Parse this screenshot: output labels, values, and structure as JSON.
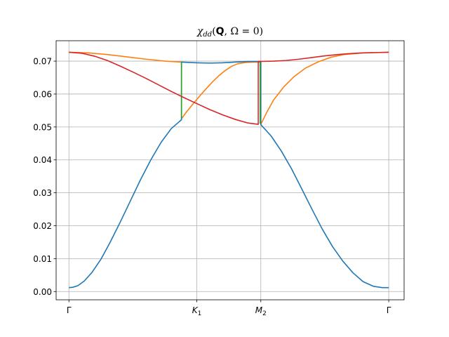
{
  "chart_data": {
    "type": "line",
    "title": "χdd(Q, Ω = 0)",
    "title_parts": {
      "chi": "χ",
      "subscript": "dd",
      "open": "(",
      "bold_q": "Q",
      "rest": ", Ω = 0)"
    },
    "xlabel": "",
    "ylabel": "",
    "x_tick_positions": [
      0.0,
      1.0,
      1.5,
      2.5
    ],
    "x_tick_labels": [
      "Γ",
      "K",
      "M",
      "Γ"
    ],
    "x_tick_subscripts": [
      "",
      "1",
      "2",
      ""
    ],
    "xlim": [
      -0.1,
      2.62
    ],
    "ylim": [
      -0.0025,
      0.0762
    ],
    "y_ticks": [
      0.0,
      0.01,
      0.02,
      0.03,
      0.04,
      0.05,
      0.06,
      0.07
    ],
    "y_tick_labels": [
      "0.00",
      "0.01",
      "0.02",
      "0.03",
      "0.04",
      "0.05",
      "0.06",
      "0.07"
    ],
    "grid": true,
    "colors": {
      "blue": "#1f77b4",
      "orange": "#ff7f0e",
      "red": "#d62728",
      "green": "#2ca02c"
    },
    "series": [
      {
        "color": "#ff7f0e",
        "points": [
          [
            0.0,
            0.0727
          ],
          [
            0.15,
            0.0725
          ],
          [
            0.3,
            0.072
          ],
          [
            0.45,
            0.0713
          ],
          [
            0.6,
            0.0706
          ],
          [
            0.75,
            0.07
          ],
          [
            0.88,
            0.0697
          ],
          [
            0.88,
            0.0525
          ],
          [
            0.92,
            0.0546
          ],
          [
            0.97,
            0.057
          ],
          [
            1.02,
            0.0593
          ],
          [
            1.07,
            0.0615
          ],
          [
            1.12,
            0.0636
          ],
          [
            1.17,
            0.0655
          ],
          [
            1.22,
            0.0671
          ],
          [
            1.27,
            0.0684
          ],
          [
            1.32,
            0.0692
          ],
          [
            1.38,
            0.0696
          ],
          [
            1.45,
            0.0697
          ],
          [
            1.5,
            0.0697
          ],
          [
            1.5,
            0.0508
          ],
          [
            1.55,
            0.0547
          ],
          [
            1.6,
            0.0582
          ],
          [
            1.68,
            0.0622
          ],
          [
            1.76,
            0.0653
          ],
          [
            1.85,
            0.0679
          ],
          [
            1.95,
            0.0698
          ],
          [
            2.05,
            0.0712
          ],
          [
            2.15,
            0.072
          ],
          [
            2.3,
            0.0725
          ],
          [
            2.4,
            0.0726
          ],
          [
            2.5,
            0.0727
          ]
        ]
      },
      {
        "color": "#1f77b4",
        "points": [
          [
            0.0,
            0.0012
          ],
          [
            0.03,
            0.0013
          ],
          [
            0.07,
            0.0018
          ],
          [
            0.12,
            0.0032
          ],
          [
            0.18,
            0.0058
          ],
          [
            0.25,
            0.0098
          ],
          [
            0.32,
            0.0148
          ],
          [
            0.4,
            0.021
          ],
          [
            0.48,
            0.0275
          ],
          [
            0.56,
            0.034
          ],
          [
            0.64,
            0.04
          ],
          [
            0.72,
            0.0453
          ],
          [
            0.8,
            0.0495
          ],
          [
            0.88,
            0.0522
          ],
          [
            0.88,
            0.0697
          ],
          [
            1.0,
            0.0695
          ],
          [
            1.1,
            0.0694
          ],
          [
            1.2,
            0.0695
          ],
          [
            1.3,
            0.0697
          ],
          [
            1.4,
            0.0699
          ],
          [
            1.5,
            0.0699
          ],
          [
            1.5,
            0.0507
          ],
          [
            1.58,
            0.0473
          ],
          [
            1.66,
            0.0427
          ],
          [
            1.74,
            0.0373
          ],
          [
            1.82,
            0.0312
          ],
          [
            1.9,
            0.025
          ],
          [
            1.98,
            0.019
          ],
          [
            2.06,
            0.0137
          ],
          [
            2.14,
            0.0093
          ],
          [
            2.22,
            0.0057
          ],
          [
            2.3,
            0.003
          ],
          [
            2.38,
            0.0016
          ],
          [
            2.45,
            0.0012
          ],
          [
            2.5,
            0.0012
          ]
        ]
      },
      {
        "color": "#2ca02c",
        "points": [
          [
            0.88,
            0.0697
          ],
          [
            0.88,
            0.0528
          ]
        ]
      },
      {
        "color": "#2ca02c",
        "points": [
          [
            1.495,
            0.0699
          ],
          [
            1.495,
            0.051
          ]
        ]
      },
      {
        "color": "#d62728",
        "points": [
          [
            0.0,
            0.0727
          ],
          [
            0.1,
            0.0724
          ],
          [
            0.2,
            0.0715
          ],
          [
            0.3,
            0.0702
          ],
          [
            0.4,
            0.0685
          ],
          [
            0.5,
            0.0667
          ],
          [
            0.6,
            0.0648
          ],
          [
            0.7,
            0.0628
          ],
          [
            0.8,
            0.0608
          ],
          [
            0.9,
            0.0589
          ],
          [
            1.0,
            0.0571
          ],
          [
            1.1,
            0.0553
          ],
          [
            1.2,
            0.0537
          ],
          [
            1.3,
            0.0523
          ],
          [
            1.4,
            0.0512
          ],
          [
            1.48,
            0.0508
          ],
          [
            1.48,
            0.0699
          ],
          [
            1.6,
            0.07
          ],
          [
            1.7,
            0.0702
          ],
          [
            1.8,
            0.0706
          ],
          [
            1.9,
            0.0711
          ],
          [
            2.0,
            0.0716
          ],
          [
            2.1,
            0.072
          ],
          [
            2.2,
            0.0723
          ],
          [
            2.3,
            0.0725
          ],
          [
            2.4,
            0.0726
          ],
          [
            2.5,
            0.0727
          ]
        ]
      }
    ]
  }
}
